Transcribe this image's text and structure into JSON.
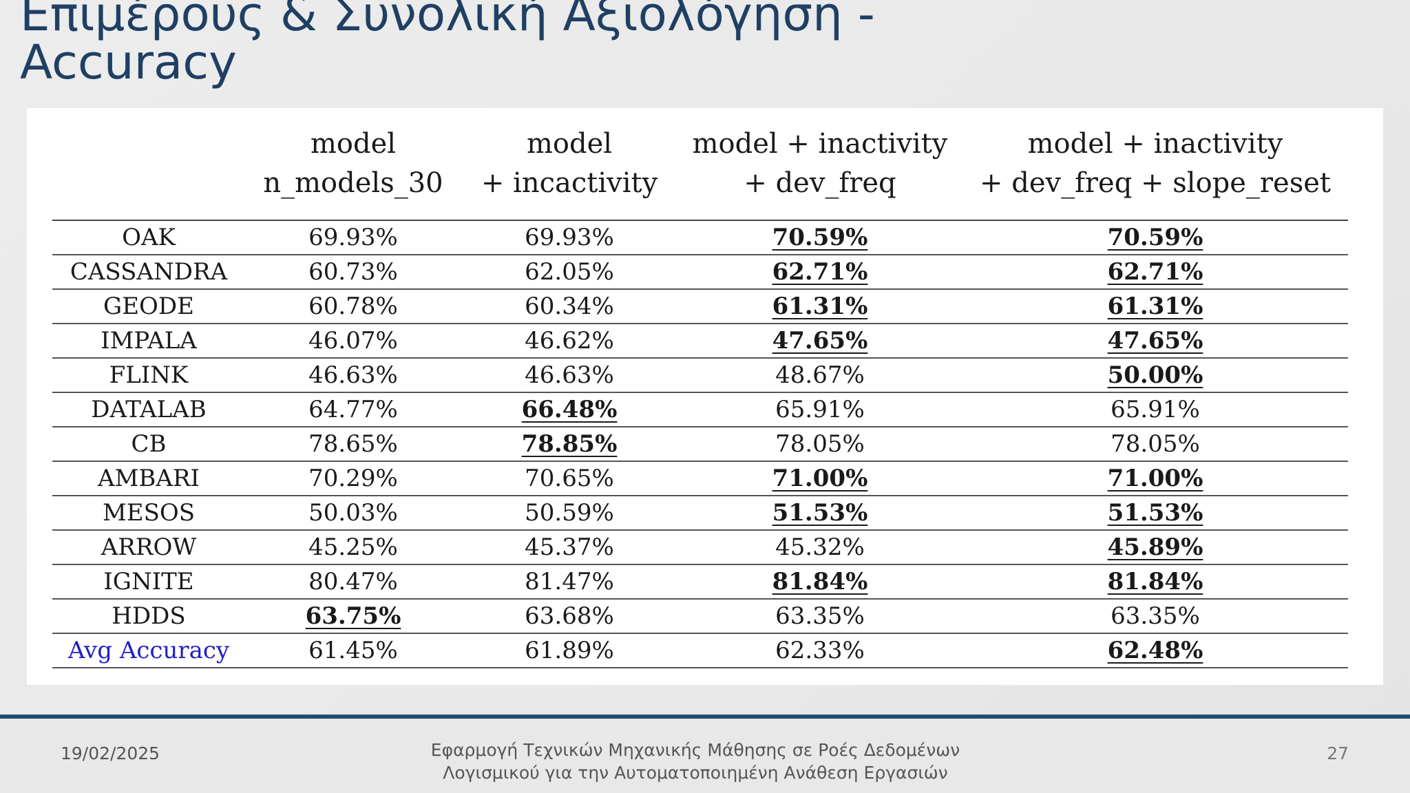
{
  "slide": {
    "title": "Επιμέρους & Συνολική Αξιολόγηση - Accuracy",
    "date": "19/02/2025",
    "footer_line1": "Εφαρμογή Τεχνικών Μηχανικής Μάθησης σε Ροές Δεδομένων",
    "footer_line2": "Λογισμικού για την Αυτοματοποιημένη Ανάθεση Εργασιών",
    "page_number": "27"
  },
  "table": {
    "headers": [
      {
        "l1": "",
        "l2": ""
      },
      {
        "l1": "model",
        "l2": "n_models_30"
      },
      {
        "l1": "model",
        "l2": "+ incactivity"
      },
      {
        "l1": "model + inactivity",
        "l2": "+ dev_freq"
      },
      {
        "l1": "model + inactivity",
        "l2": "+ dev_freq + slope_reset"
      }
    ],
    "rows": [
      {
        "name": "OAK",
        "values": [
          "69.93%",
          "69.93%",
          "70.59%",
          "70.59%"
        ],
        "best": [
          2,
          3
        ]
      },
      {
        "name": "CASSANDRA",
        "values": [
          "60.73%",
          "62.05%",
          "62.71%",
          "62.71%"
        ],
        "best": [
          2,
          3
        ]
      },
      {
        "name": "GEODE",
        "values": [
          "60.78%",
          "60.34%",
          "61.31%",
          "61.31%"
        ],
        "best": [
          2,
          3
        ]
      },
      {
        "name": "IMPALA",
        "values": [
          "46.07%",
          "46.62%",
          "47.65%",
          "47.65%"
        ],
        "best": [
          2,
          3
        ]
      },
      {
        "name": "FLINK",
        "values": [
          "46.63%",
          "46.63%",
          "48.67%",
          "50.00%"
        ],
        "best": [
          3
        ]
      },
      {
        "name": "DATALAB",
        "values": [
          "64.77%",
          "66.48%",
          "65.91%",
          "65.91%"
        ],
        "best": [
          1
        ]
      },
      {
        "name": "CB",
        "values": [
          "78.65%",
          "78.85%",
          "78.05%",
          "78.05%"
        ],
        "best": [
          1
        ]
      },
      {
        "name": "AMBARI",
        "values": [
          "70.29%",
          "70.65%",
          "71.00%",
          "71.00%"
        ],
        "best": [
          2,
          3
        ]
      },
      {
        "name": "MESOS",
        "values": [
          "50.03%",
          "50.59%",
          "51.53%",
          "51.53%"
        ],
        "best": [
          2,
          3
        ]
      },
      {
        "name": "ARROW",
        "values": [
          "45.25%",
          "45.37%",
          "45.32%",
          "45.89%"
        ],
        "best": [
          3
        ]
      },
      {
        "name": "IGNITE",
        "values": [
          "80.47%",
          "81.47%",
          "81.84%",
          "81.84%"
        ],
        "best": [
          2,
          3
        ]
      },
      {
        "name": "HDDS",
        "values": [
          "63.75%",
          "63.68%",
          "63.35%",
          "63.35%"
        ],
        "best": [
          0
        ]
      },
      {
        "name": "Avg Accuracy",
        "values": [
          "61.45%",
          "61.89%",
          "62.33%",
          "62.48%"
        ],
        "best": [
          3
        ],
        "is_avg": true
      }
    ]
  },
  "colors": {
    "title": "#1f3f64",
    "avg_label": "#1f1fc8",
    "footer_rule": "#1f4e6e"
  }
}
